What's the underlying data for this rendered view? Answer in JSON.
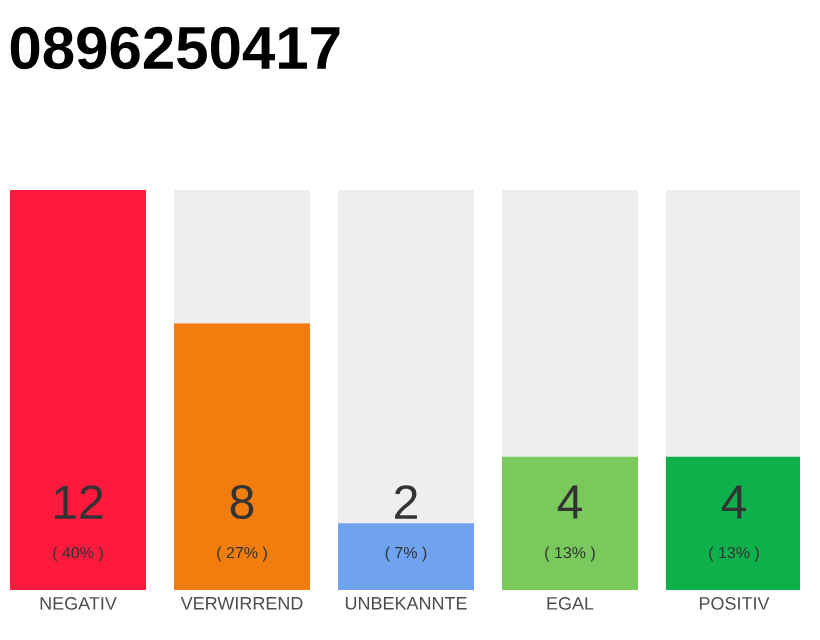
{
  "chart_data": {
    "type": "bar",
    "title": "0896250417",
    "categories": [
      "NEGATIV",
      "VERWIRREND",
      "UNBEKANNTE",
      "EGAL",
      "POSITIV"
    ],
    "values": [
      12,
      8,
      2,
      4,
      4
    ],
    "colors": [
      "#ff1a3d",
      "#f07d0e",
      "#6fa3ef",
      "#7ac95c",
      "#0db04b"
    ],
    "value_labels": [
      "12",
      "8",
      "2",
      "4",
      "4"
    ],
    "annotations": [
      "( 40% )",
      "( 27% )",
      "( 7% )",
      "( 13% )",
      "( 13% )"
    ]
  }
}
